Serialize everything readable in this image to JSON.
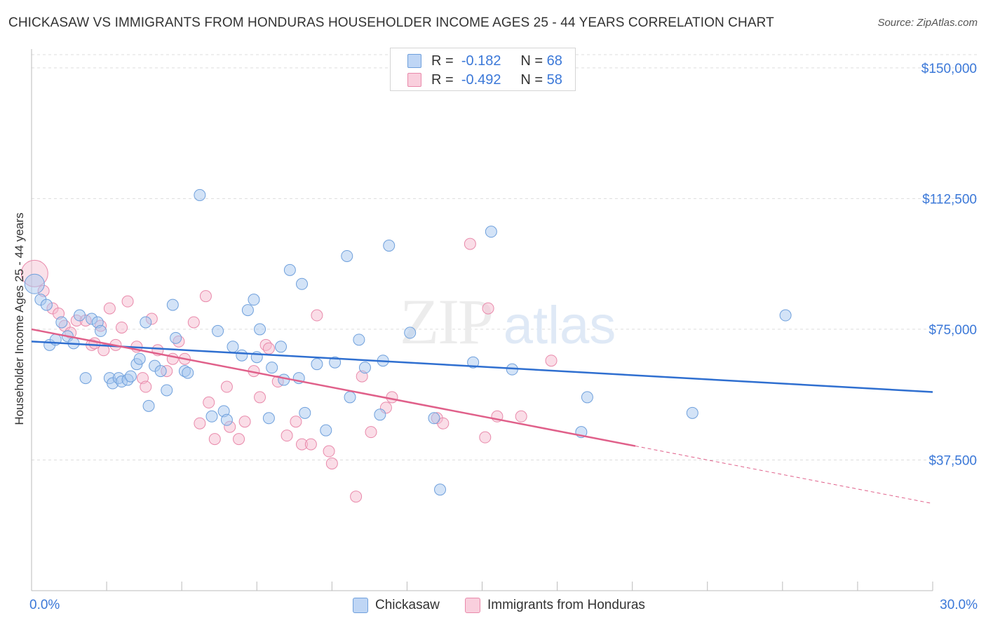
{
  "title": "CHICKASAW VS IMMIGRANTS FROM HONDURAS HOUSEHOLDER INCOME AGES 25 - 44 YEARS CORRELATION CHART",
  "source": "Source: ZipAtlas.com",
  "watermark": {
    "zip": "ZIP",
    "atlas": "atlas"
  },
  "legend": {
    "rows": [
      {
        "r_label": "R =",
        "r_value": "-0.182",
        "n_label": "N =",
        "n_value": "68"
      },
      {
        "r_label": "R =",
        "r_value": "-0.492",
        "n_label": "N =",
        "n_value": "58"
      }
    ]
  },
  "colors": {
    "chickasaw_fill": "#a8c8f0",
    "chickasaw_stroke": "#6fa0dc",
    "chickasaw_line": "#2f6fd0",
    "honduras_fill": "#f5bccf",
    "honduras_stroke": "#e98aab",
    "honduras_line": "#e0608a",
    "axis_text": "#3b78d8",
    "grid": "#dddddd"
  },
  "chart_data": {
    "type": "scatter",
    "title": "CHICKASAW VS IMMIGRANTS FROM HONDURAS HOUSEHOLDER INCOME AGES 25 - 44 YEARS CORRELATION CHART",
    "xlabel": "",
    "ylabel": "Householder Income Ages 25 - 44 years",
    "xlim": [
      0,
      30
    ],
    "ylim": [
      0,
      155000
    ],
    "x_tick_labels": [
      "0.0%",
      "30.0%"
    ],
    "y_ticks": [
      37500,
      75000,
      112500,
      150000
    ],
    "y_tick_labels": [
      "$37,500",
      "$75,000",
      "$112,500",
      "$150,000"
    ],
    "grid": true,
    "legend_position": "top-center",
    "series": [
      {
        "name": "Chickasaw",
        "r": -0.182,
        "n": 68,
        "trend": {
          "x": [
            0,
            30
          ],
          "y": [
            71500,
            57000
          ]
        },
        "points": [
          {
            "x": 0.1,
            "y": 88000,
            "big": true
          },
          {
            "x": 0.3,
            "y": 83500
          },
          {
            "x": 0.5,
            "y": 82000
          },
          {
            "x": 0.6,
            "y": 70500
          },
          {
            "x": 0.8,
            "y": 72000
          },
          {
            "x": 1.0,
            "y": 77000
          },
          {
            "x": 1.2,
            "y": 73000
          },
          {
            "x": 1.4,
            "y": 71000
          },
          {
            "x": 1.6,
            "y": 79000
          },
          {
            "x": 1.8,
            "y": 61000
          },
          {
            "x": 2.0,
            "y": 78000
          },
          {
            "x": 2.2,
            "y": 77000
          },
          {
            "x": 2.3,
            "y": 74500
          },
          {
            "x": 2.6,
            "y": 61000
          },
          {
            "x": 2.7,
            "y": 59500
          },
          {
            "x": 2.9,
            "y": 61000
          },
          {
            "x": 3.0,
            "y": 60000
          },
          {
            "x": 3.2,
            "y": 60500
          },
          {
            "x": 3.3,
            "y": 61500
          },
          {
            "x": 3.5,
            "y": 65000
          },
          {
            "x": 3.6,
            "y": 66500
          },
          {
            "x": 3.8,
            "y": 77000
          },
          {
            "x": 3.9,
            "y": 53000
          },
          {
            "x": 4.1,
            "y": 64500
          },
          {
            "x": 4.3,
            "y": 63000
          },
          {
            "x": 4.5,
            "y": 57500
          },
          {
            "x": 4.7,
            "y": 82000
          },
          {
            "x": 4.8,
            "y": 72500
          },
          {
            "x": 5.1,
            "y": 63000
          },
          {
            "x": 5.2,
            "y": 62500
          },
          {
            "x": 5.6,
            "y": 113500
          },
          {
            "x": 6.0,
            "y": 50000
          },
          {
            "x": 6.2,
            "y": 74500
          },
          {
            "x": 6.4,
            "y": 51500
          },
          {
            "x": 6.5,
            "y": 49000
          },
          {
            "x": 6.7,
            "y": 70000
          },
          {
            "x": 7.0,
            "y": 67500
          },
          {
            "x": 7.2,
            "y": 80500
          },
          {
            "x": 7.4,
            "y": 83500
          },
          {
            "x": 7.5,
            "y": 67000
          },
          {
            "x": 7.6,
            "y": 75000
          },
          {
            "x": 7.9,
            "y": 49500
          },
          {
            "x": 8.0,
            "y": 64000
          },
          {
            "x": 8.3,
            "y": 70000
          },
          {
            "x": 8.4,
            "y": 60500
          },
          {
            "x": 8.6,
            "y": 92000
          },
          {
            "x": 8.9,
            "y": 61000
          },
          {
            "x": 9.0,
            "y": 88000
          },
          {
            "x": 9.1,
            "y": 51000
          },
          {
            "x": 9.5,
            "y": 65000
          },
          {
            "x": 9.8,
            "y": 46000
          },
          {
            "x": 10.1,
            "y": 65500
          },
          {
            "x": 10.5,
            "y": 96000
          },
          {
            "x": 10.6,
            "y": 55500
          },
          {
            "x": 10.9,
            "y": 72000
          },
          {
            "x": 11.1,
            "y": 64000
          },
          {
            "x": 11.6,
            "y": 50500
          },
          {
            "x": 11.7,
            "y": 66000
          },
          {
            "x": 11.9,
            "y": 99000
          },
          {
            "x": 12.6,
            "y": 74000
          },
          {
            "x": 13.4,
            "y": 49500
          },
          {
            "x": 13.6,
            "y": 29000
          },
          {
            "x": 14.7,
            "y": 65500
          },
          {
            "x": 15.3,
            "y": 103000
          },
          {
            "x": 16.0,
            "y": 63500
          },
          {
            "x": 18.3,
            "y": 45500
          },
          {
            "x": 18.5,
            "y": 55500
          },
          {
            "x": 22.0,
            "y": 51000
          },
          {
            "x": 25.1,
            "y": 79000
          }
        ]
      },
      {
        "name": "Immigrants from Honduras",
        "r": -0.492,
        "n": 58,
        "trend": {
          "x": [
            0,
            20.1
          ],
          "y": [
            75000,
            41500
          ]
        },
        "trend_extension": {
          "x": [
            20.1,
            30
          ],
          "y": [
            41500,
            25000
          ]
        },
        "points": [
          {
            "x": 0.1,
            "y": 91000,
            "big": true
          },
          {
            "x": 0.4,
            "y": 86000
          },
          {
            "x": 0.7,
            "y": 81000
          },
          {
            "x": 0.9,
            "y": 79500
          },
          {
            "x": 1.1,
            "y": 76000
          },
          {
            "x": 1.3,
            "y": 74000
          },
          {
            "x": 1.5,
            "y": 77500
          },
          {
            "x": 1.8,
            "y": 77500
          },
          {
            "x": 2.0,
            "y": 70500
          },
          {
            "x": 2.1,
            "y": 71000
          },
          {
            "x": 2.3,
            "y": 76000
          },
          {
            "x": 2.4,
            "y": 69000
          },
          {
            "x": 2.6,
            "y": 81000
          },
          {
            "x": 2.8,
            "y": 70500
          },
          {
            "x": 3.0,
            "y": 75500
          },
          {
            "x": 3.2,
            "y": 83000
          },
          {
            "x": 3.5,
            "y": 70000
          },
          {
            "x": 3.7,
            "y": 61000
          },
          {
            "x": 3.8,
            "y": 58500
          },
          {
            "x": 4.0,
            "y": 78000
          },
          {
            "x": 4.2,
            "y": 69000
          },
          {
            "x": 4.5,
            "y": 63000
          },
          {
            "x": 4.7,
            "y": 66500
          },
          {
            "x": 4.9,
            "y": 71500
          },
          {
            "x": 5.1,
            "y": 66500
          },
          {
            "x": 5.4,
            "y": 77000
          },
          {
            "x": 5.6,
            "y": 48000
          },
          {
            "x": 5.8,
            "y": 84500
          },
          {
            "x": 5.9,
            "y": 54000
          },
          {
            "x": 6.1,
            "y": 43500
          },
          {
            "x": 6.5,
            "y": 58500
          },
          {
            "x": 6.6,
            "y": 47000
          },
          {
            "x": 6.9,
            "y": 43500
          },
          {
            "x": 7.1,
            "y": 48500
          },
          {
            "x": 7.4,
            "y": 63000
          },
          {
            "x": 7.6,
            "y": 55500
          },
          {
            "x": 7.8,
            "y": 70500
          },
          {
            "x": 7.9,
            "y": 69500
          },
          {
            "x": 8.2,
            "y": 60000
          },
          {
            "x": 8.5,
            "y": 44500
          },
          {
            "x": 8.8,
            "y": 48500
          },
          {
            "x": 9.0,
            "y": 42000
          },
          {
            "x": 9.3,
            "y": 42000
          },
          {
            "x": 9.5,
            "y": 79000
          },
          {
            "x": 9.9,
            "y": 40000
          },
          {
            "x": 10.0,
            "y": 36500
          },
          {
            "x": 10.8,
            "y": 27000
          },
          {
            "x": 11.0,
            "y": 61500
          },
          {
            "x": 11.3,
            "y": 45500
          },
          {
            "x": 11.8,
            "y": 52500
          },
          {
            "x": 12.0,
            "y": 55500
          },
          {
            "x": 13.5,
            "y": 49500
          },
          {
            "x": 13.7,
            "y": 48000
          },
          {
            "x": 14.6,
            "y": 99500
          },
          {
            "x": 15.1,
            "y": 44000
          },
          {
            "x": 15.2,
            "y": 81000
          },
          {
            "x": 15.5,
            "y": 50000
          },
          {
            "x": 16.3,
            "y": 50000
          },
          {
            "x": 17.3,
            "y": 66000
          }
        ]
      }
    ]
  },
  "bottom_legend": {
    "items": [
      {
        "label": "Chickasaw"
      },
      {
        "label": "Immigrants from Honduras"
      }
    ]
  }
}
